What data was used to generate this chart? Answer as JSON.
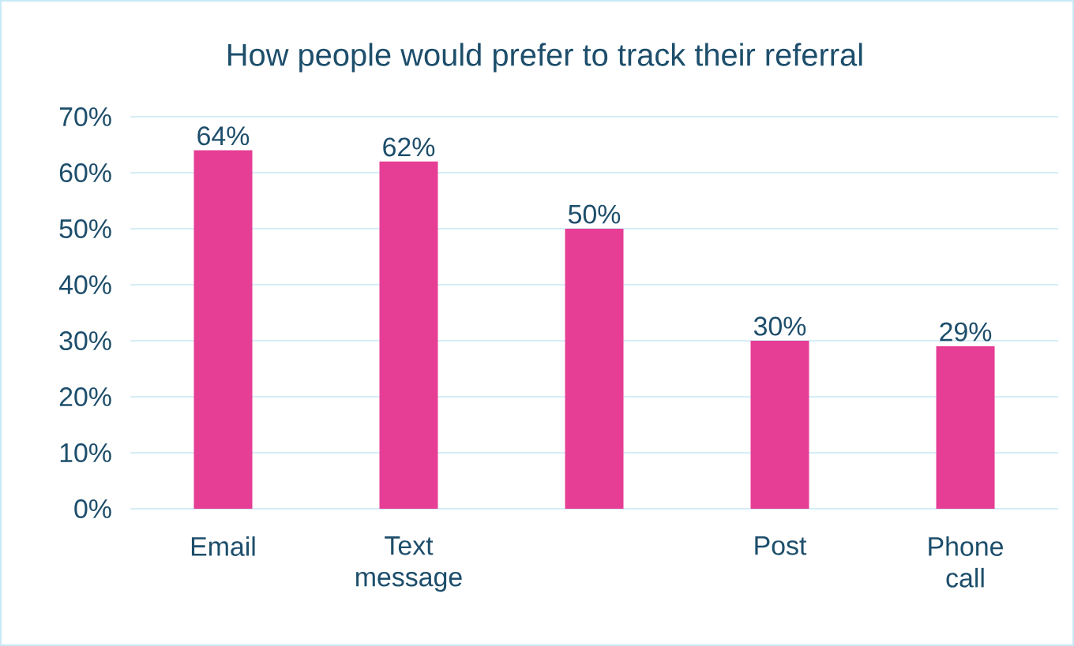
{
  "chart_data": {
    "type": "bar",
    "title": "How people would prefer to track their referral",
    "categories": [
      "Email",
      "Text message",
      null,
      "Post",
      "Phone call"
    ],
    "values": [
      64,
      62,
      50,
      30,
      29
    ],
    "value_labels": [
      "64%",
      "62%",
      "50%",
      "30%",
      "29%"
    ],
    "color": "#e63e95",
    "ylim": [
      0,
      70
    ],
    "yticks": [
      {
        "value": 0,
        "label": "0%"
      },
      {
        "value": 10,
        "label": "10%"
      },
      {
        "value": 20,
        "label": "20%"
      },
      {
        "value": 30,
        "label": "30%"
      },
      {
        "value": 40,
        "label": "40%"
      },
      {
        "value": 50,
        "label": "50%"
      },
      {
        "value": 60,
        "label": "60%"
      },
      {
        "value": 70,
        "label": "70%"
      }
    ],
    "grid": "y"
  }
}
